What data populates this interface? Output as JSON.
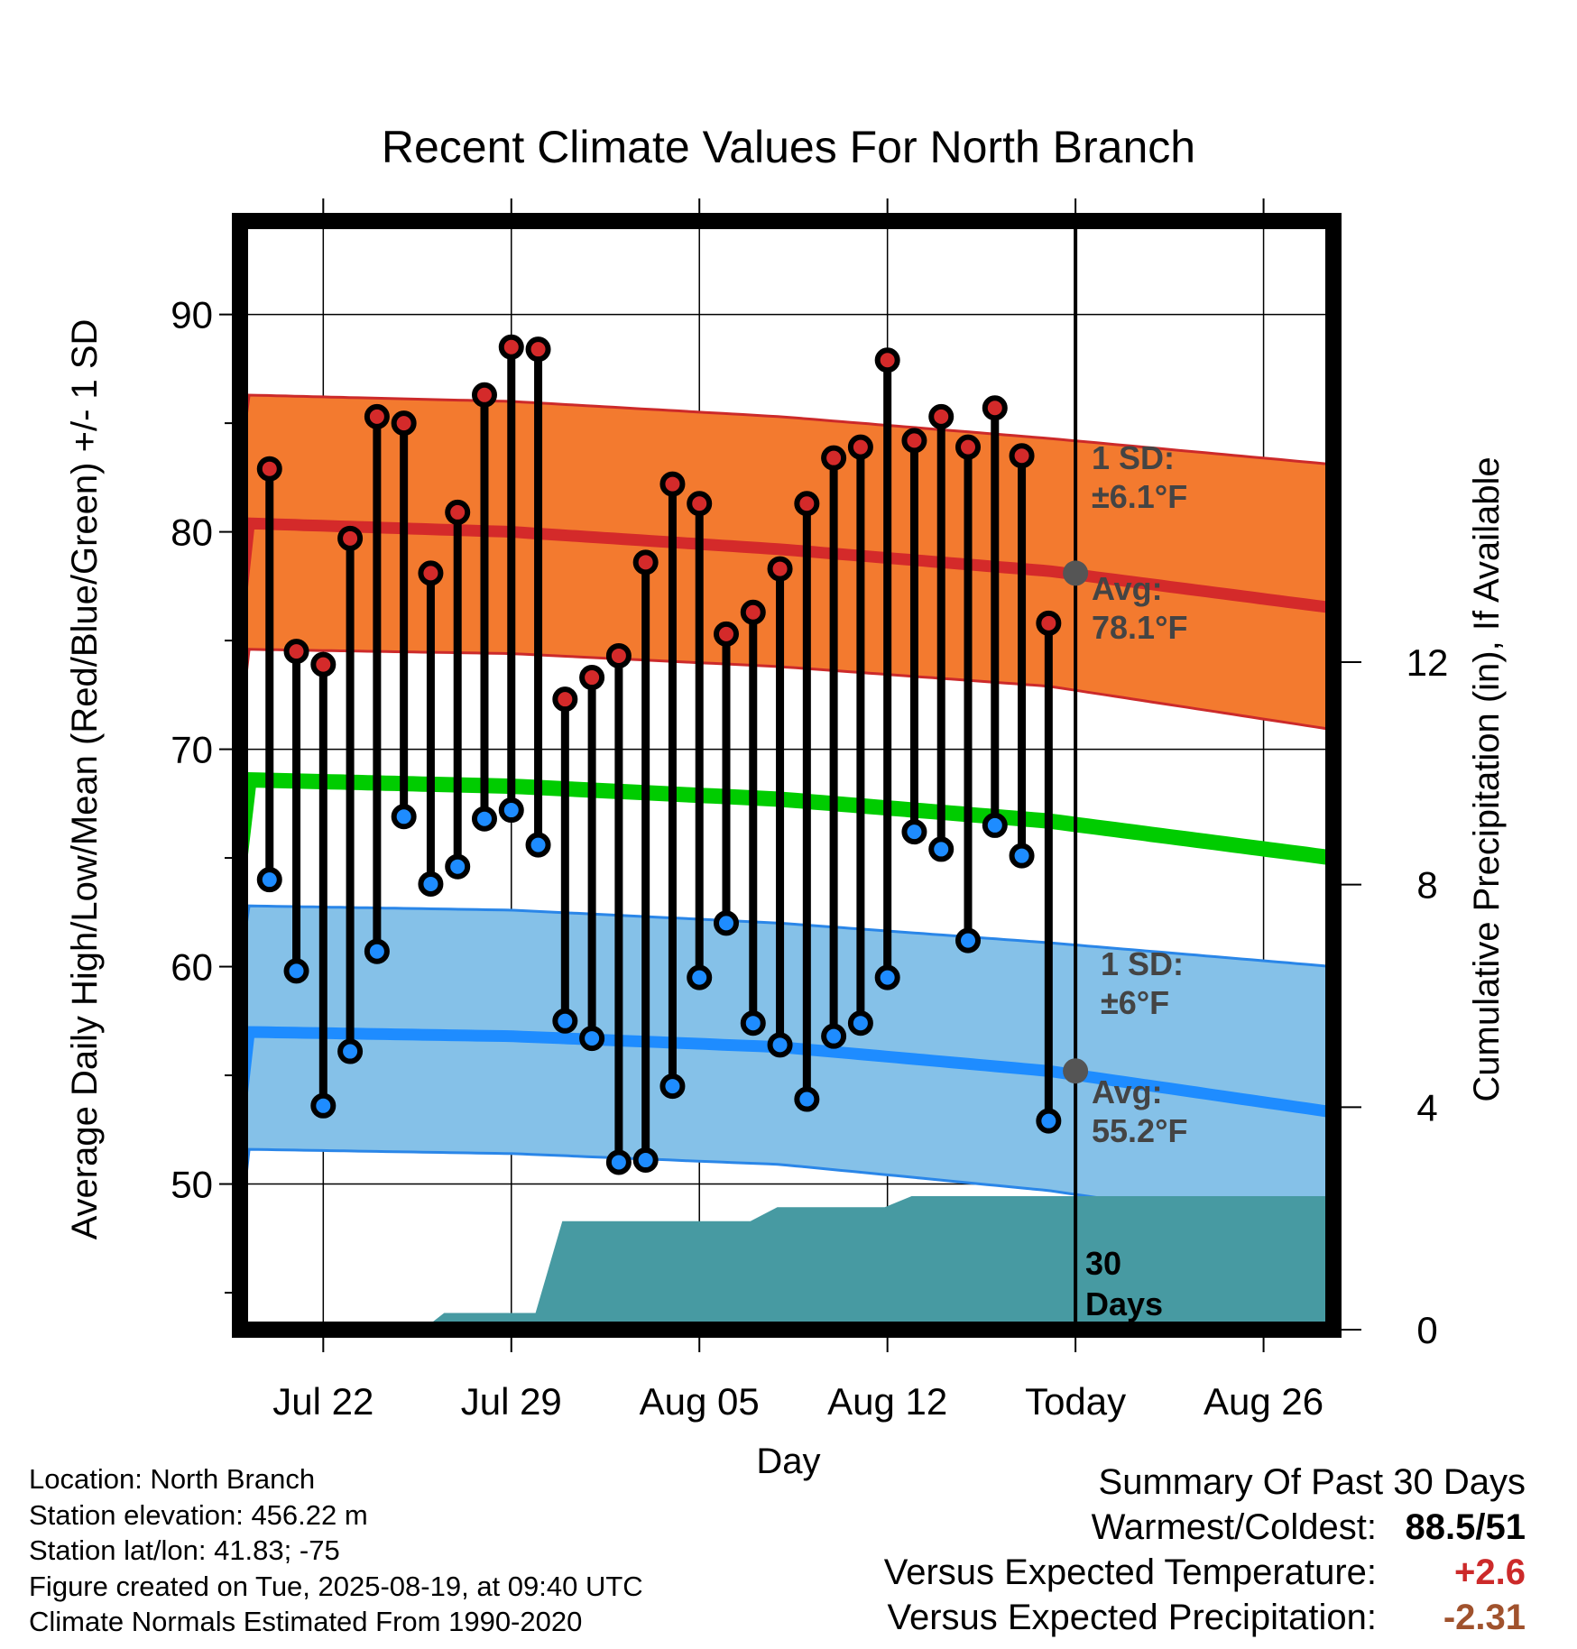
{
  "chart_data": {
    "type": "line",
    "title": "Recent Climate Values For North Branch",
    "xlabel": "Day",
    "ylabel": "Average Daily High/Low/Mean (Red/Blue/Green) +/- 1 SD",
    "ylabel_right": "Cumulative Precipitation (in), If Available",
    "x_tick_labels": [
      "Jul 22",
      "Jul 29",
      "Aug 05",
      "Aug 12",
      "Today",
      "Aug 26"
    ],
    "x_tick_days": [
      3,
      10,
      17,
      24,
      31,
      38
    ],
    "xlim_days": [
      -0.1,
      40.6
    ],
    "ylim": [
      43.3,
      94.3
    ],
    "y_ticks": [
      50,
      60,
      70,
      80,
      90
    ],
    "y_minor_ticks": [
      45,
      55,
      65,
      75,
      85
    ],
    "y2lim": [
      0,
      19.93
    ],
    "y2_ticks": [
      0,
      4,
      8,
      12
    ],
    "grid": true,
    "days": [
      1,
      2,
      3,
      4,
      5,
      6,
      7,
      8,
      9,
      10,
      11,
      12,
      13,
      14,
      15,
      16,
      17,
      18,
      19,
      20,
      21,
      22,
      23,
      24,
      25,
      26,
      27,
      28,
      29,
      30
    ],
    "highs": [
      82.9,
      74.5,
      73.9,
      79.7,
      85.3,
      85.0,
      78.1,
      80.9,
      86.3,
      88.5,
      88.4,
      72.3,
      73.3,
      74.3,
      78.6,
      82.2,
      81.3,
      75.3,
      76.3,
      78.3,
      81.3,
      83.4,
      83.9,
      87.9,
      84.2,
      85.3,
      83.9,
      85.7,
      83.5,
      75.8
    ],
    "lows": [
      64.0,
      59.8,
      53.6,
      56.1,
      60.7,
      66.9,
      63.8,
      64.6,
      66.8,
      67.2,
      65.6,
      57.5,
      56.7,
      51.0,
      51.1,
      54.5,
      59.5,
      62.0,
      57.4,
      56.4,
      53.9,
      56.8,
      57.4,
      59.5,
      66.2,
      65.4,
      61.2,
      66.5,
      65.1,
      52.9
    ],
    "normals": {
      "x": [
        0,
        10,
        20,
        30,
        40.6
      ],
      "high_avg": [
        80.4,
        80.0,
        79.2,
        78.2,
        76.5
      ],
      "high_upper": [
        86.3,
        86.0,
        85.3,
        84.3,
        83.1
      ],
      "high_lower": [
        74.6,
        74.4,
        73.8,
        72.9,
        70.9
      ],
      "mean_avg": [
        68.6,
        68.3,
        67.7,
        66.7,
        65.0
      ],
      "low_avg": [
        57.0,
        56.8,
        56.3,
        55.2,
        53.3
      ],
      "low_upper": [
        62.8,
        62.6,
        62.0,
        61.1,
        60.0
      ],
      "low_lower": [
        51.6,
        51.4,
        50.9,
        49.7,
        47.8
      ]
    },
    "precip_cumulative": {
      "x": [
        0,
        6.7,
        7.5,
        10.9,
        11.9,
        18.9,
        19.9,
        23.9,
        24.9,
        40.6
      ],
      "values": [
        0,
        0,
        0.3,
        0.3,
        1.95,
        1.95,
        2.2,
        2.2,
        2.4,
        2.4
      ]
    },
    "today_day": 31,
    "annotations": {
      "high_sd_line1": "1 SD:",
      "high_sd_line2": "±6.1°F",
      "high_avg_line1": "Avg:",
      "high_avg_line2": "78.1°F",
      "low_sd_line1": "1 SD:",
      "low_sd_line2": "±6°F",
      "low_avg_line1": "Avg:",
      "low_avg_line2": "55.2°F",
      "days_line1": "30",
      "days_line2": "Days"
    },
    "today_high_avg": 78.1,
    "today_low_avg": 55.2,
    "colors": {
      "high_band": "#f37a2f",
      "high_avg_line": "#d42a2a",
      "band_edge_high": "#cc2a2a",
      "mean_line": "#00cc00",
      "low_band": "#85c1e8",
      "low_avg_line": "#1e8cff",
      "band_edge_low": "#2a86e8",
      "precip_fill": "#479aa2",
      "high_dot": "#d42a2a",
      "low_dot": "#1e8cff",
      "today_dot": "#555555"
    }
  },
  "info": {
    "location": "Location: North Branch",
    "elevation": "Station elevation: 456.22 m",
    "latlon": "Station lat/lon: 41.83; -75",
    "created": "Figure created on Tue, 2025-08-19, at 09:40 UTC",
    "normals": "Climate Normals Estimated From 1990-2020"
  },
  "summary": {
    "heading": "Summary Of Past 30 Days",
    "warmest_label": "Warmest/Coldest:",
    "warmest_value": "88.5/51",
    "temp_label": "Versus Expected Temperature:",
    "temp_value": "+2.6",
    "temp_color": "#cc2a2a",
    "precip_label": "Versus Expected Precipitation:",
    "precip_value": "-2.31",
    "precip_color": "#a0522d"
  }
}
